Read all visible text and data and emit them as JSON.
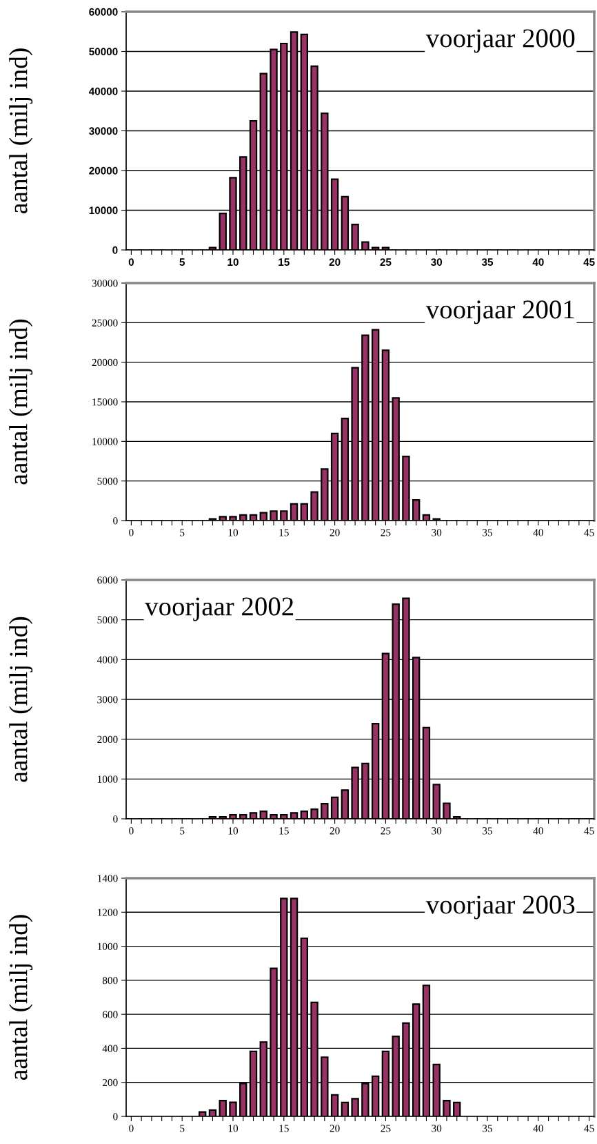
{
  "chart_data": [
    {
      "type": "bar",
      "title": "voorjaar 2000",
      "ylabel": "aantal (milj ind)",
      "categories": [
        "0",
        null,
        null,
        null,
        null,
        "5",
        null,
        null,
        null,
        null,
        "10",
        null,
        null,
        null,
        null,
        "15",
        null,
        null,
        null,
        null,
        "20",
        null,
        null,
        null,
        null,
        "25",
        null,
        null,
        null,
        null,
        "30",
        null,
        null,
        null,
        null,
        "35",
        null,
        null,
        null,
        null,
        "40",
        null,
        null,
        null,
        null,
        "45"
      ],
      "color": "#993366",
      "values": [
        0,
        0,
        0,
        0,
        0,
        0,
        0,
        0,
        600,
        9200,
        18200,
        23400,
        32500,
        44400,
        50500,
        52000,
        54900,
        54300,
        46300,
        34400,
        17800,
        13400,
        6400,
        2000,
        600,
        600,
        0,
        0,
        0,
        0,
        0,
        0,
        0,
        0,
        0,
        0,
        0,
        0,
        0,
        0,
        0,
        0,
        0,
        0,
        0,
        0
      ],
      "ylim": [
        0,
        60000
      ],
      "yticks": [
        0,
        10000,
        20000,
        30000,
        40000,
        50000,
        60000
      ],
      "grid": "y"
    },
    {
      "type": "bar",
      "title": "voorjaar 2001",
      "ylabel": "aantal (milj ind)",
      "categories": [
        "0",
        null,
        null,
        null,
        null,
        "5",
        null,
        null,
        null,
        null,
        "10",
        null,
        null,
        null,
        null,
        "15",
        null,
        null,
        null,
        null,
        "20",
        null,
        null,
        null,
        null,
        "25",
        null,
        null,
        null,
        null,
        "30",
        null,
        null,
        null,
        null,
        "35",
        null,
        null,
        null,
        null,
        "40",
        null,
        null,
        null,
        null,
        "45"
      ],
      "color": "#993366",
      "values": [
        0,
        0,
        0,
        0,
        0,
        0,
        0,
        0,
        200,
        500,
        500,
        700,
        700,
        1000,
        1200,
        1200,
        2100,
        2100,
        3600,
        6500,
        11000,
        12900,
        19300,
        23400,
        24100,
        21500,
        15500,
        8100,
        2600,
        700,
        200,
        0,
        0,
        0,
        0,
        0,
        0,
        0,
        0,
        0,
        0,
        0,
        0,
        0,
        0,
        0
      ],
      "ylim": [
        0,
        30000
      ],
      "yticks": [
        0,
        5000,
        10000,
        15000,
        20000,
        25000,
        30000
      ],
      "grid": "y"
    },
    {
      "type": "bar",
      "title": "voorjaar 2002",
      "ylabel": "aantal (milj ind)",
      "categories": [
        "0",
        null,
        null,
        null,
        null,
        "5",
        null,
        null,
        null,
        null,
        "10",
        null,
        null,
        null,
        null,
        "15",
        null,
        null,
        null,
        null,
        "20",
        null,
        null,
        null,
        null,
        "25",
        null,
        null,
        null,
        null,
        "30",
        null,
        null,
        null,
        null,
        "35",
        null,
        null,
        null,
        null,
        "40",
        null,
        null,
        null,
        null,
        "45"
      ],
      "color": "#993366",
      "values": [
        0,
        0,
        0,
        0,
        0,
        0,
        0,
        0,
        50,
        50,
        100,
        100,
        150,
        190,
        100,
        100,
        150,
        190,
        240,
        380,
        540,
        720,
        1290,
        1390,
        2390,
        4150,
        5390,
        5540,
        4050,
        2290,
        860,
        390,
        50,
        0,
        0,
        0,
        0,
        0,
        0,
        0,
        0,
        0,
        0,
        0,
        0,
        0
      ],
      "ylim": [
        0,
        6000
      ],
      "yticks": [
        0,
        1000,
        2000,
        3000,
        4000,
        5000,
        6000
      ],
      "grid": "y"
    },
    {
      "type": "bar",
      "title": "voorjaar 2003",
      "ylabel": "aantal (milj ind)",
      "categories": [
        "0",
        null,
        null,
        null,
        null,
        "5",
        null,
        null,
        null,
        null,
        "10",
        null,
        null,
        null,
        null,
        "15",
        null,
        null,
        null,
        null,
        "20",
        null,
        null,
        null,
        null,
        "25",
        null,
        null,
        null,
        null,
        "30",
        null,
        null,
        null,
        null,
        "35",
        null,
        null,
        null,
        null,
        "40",
        null,
        null,
        null,
        null,
        "45"
      ],
      "color": "#993366",
      "values": [
        0,
        0,
        0,
        0,
        0,
        0,
        0,
        26,
        37,
        93,
        83,
        193,
        382,
        437,
        870,
        1281,
        1281,
        1047,
        670,
        348,
        126,
        82,
        104,
        193,
        236,
        382,
        470,
        548,
        660,
        770,
        305,
        93,
        82,
        0,
        0,
        0,
        0,
        0,
        0,
        0,
        0,
        0,
        0,
        0,
        0,
        0
      ],
      "ylim": [
        0,
        1400
      ],
      "yticks": [
        0,
        200,
        400,
        600,
        800,
        1000,
        1200,
        1400
      ],
      "grid": "y"
    }
  ]
}
